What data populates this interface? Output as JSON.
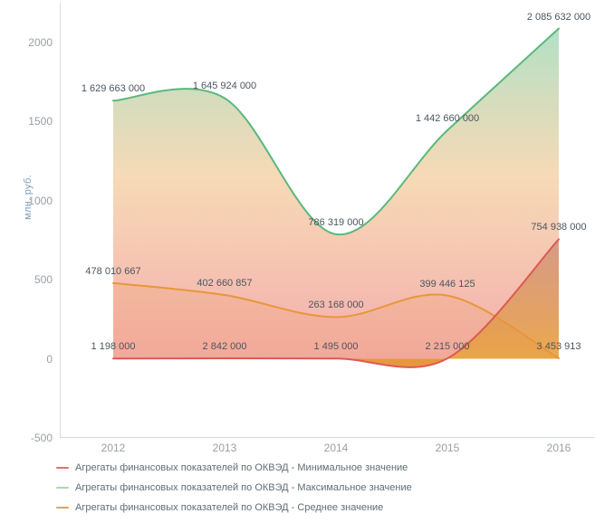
{
  "chart_data": {
    "type": "area",
    "title": "",
    "ylabel": "млн. руб.",
    "unit": "руб.",
    "grid": false,
    "legend_position": "bottom-left",
    "x_categories": [
      "2012",
      "2013",
      "2014",
      "2015",
      "2016"
    ],
    "y_ticks": [
      "2000",
      "1500",
      "1000",
      "500",
      "0",
      "-500"
    ],
    "y_tick_values": [
      2000,
      1500,
      1000,
      500,
      0,
      -500
    ],
    "ylim": [
      -500,
      2250
    ],
    "series": [
      {
        "key": "min",
        "name": "Агрегаты финансовых показателей по ОКВЭД - Минимальное значение",
        "values": [
          1198000,
          2842000,
          1495000,
          2215000,
          754938000
        ],
        "labels": [
          "1 198 000",
          "2 842 000",
          "1 495 000",
          "2 215 000",
          "754 938 000"
        ],
        "line_color": "#dd5a52",
        "legend_color": "#e0716e"
      },
      {
        "key": "max",
        "name": "Агрегаты финансовых показателей по ОКВЭД - Максимальное значение",
        "values": [
          1629663000,
          1645924000,
          786319000,
          1442660000,
          2085632000
        ],
        "labels": [
          "1 629 663 000",
          "1 645 924 000",
          "786 319 000",
          "1 442 660 000",
          "2 085 632 000"
        ],
        "line_color": "#5bb87d",
        "legend_color": "#a9d8b8"
      },
      {
        "key": "avg",
        "name": "Агрегаты финансовых показателей по ОКВЭД - Среднее значение",
        "values": [
          478010667,
          402660857,
          263168000,
          399446125,
          3453913
        ],
        "labels": [
          "478 010 667",
          "402 660 857",
          "263 168 000",
          "399 446 125",
          "3 453 913"
        ],
        "line_color": "#e8963c",
        "legend_color": "#e9a050"
      }
    ],
    "colors": {
      "axis": "#d9d9d9",
      "tick_text": "#9aa0a5",
      "label_text": "#4b565e",
      "ylabel_text": "#7f9eb6",
      "legend_text": "#5f6d76",
      "band_gradient": [
        "rgba(116,199,150,0.55)",
        "rgba(238,180,110,0.50)",
        "rgba(234,105,105,0.55)"
      ],
      "min_fill_gradient": [
        "rgba(190,90,55,0.60)",
        "rgba(230,145,30,0.78)"
      ],
      "avg_fill": "rgba(232,150,70,0.18)"
    }
  }
}
